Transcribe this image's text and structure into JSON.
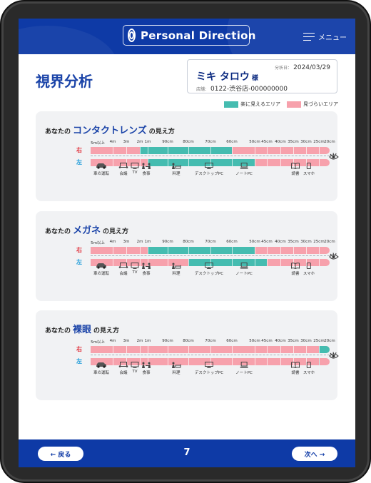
{
  "header": {
    "brand": "Personal Direction",
    "menu_label": "メニュー"
  },
  "page": {
    "title": "視界分析"
  },
  "customer": {
    "date_label": "分析日：",
    "date": "2024/03/29",
    "name": "ミキ タロウ",
    "honorific": "様",
    "store_label": "店舗：",
    "store": "0122-渋谷店-000000000"
  },
  "legend": {
    "easy_label": "楽に見えるエリア",
    "hard_label": "見づらいエリア",
    "easy_color": "#45bcb0",
    "hard_color": "#f7a1ac"
  },
  "distance_ticks": [
    "5m以上",
    "4m",
    "3m",
    "2m",
    "1m",
    "90cm",
    "80cm",
    "70cm",
    "60cm",
    "50cm",
    "45cm",
    "40cm",
    "35cm",
    "30cm",
    "25cm",
    "20cm"
  ],
  "eye_labels": {
    "right": "右",
    "left": "左"
  },
  "activities": [
    {
      "label": "車の運転",
      "icon": "car-icon"
    },
    {
      "label": "会議",
      "icon": "meeting-icon"
    },
    {
      "label": "TV",
      "icon": "tv-icon"
    },
    {
      "label": "食事",
      "icon": "dining-icon"
    },
    {
      "label": "料理",
      "icon": "cooking-icon"
    },
    {
      "label": "デスクトップPC",
      "icon": "desktop-pc-icon"
    },
    {
      "label": "ノートPC",
      "icon": "laptop-icon"
    },
    {
      "label": "読書",
      "icon": "book-icon"
    },
    {
      "label": "スマホ",
      "icon": "smartphone-icon"
    }
  ],
  "cards": [
    {
      "prefix": "あなたの",
      "lens": "コンタクトレンズ",
      "suffix": "の見え方",
      "right_clear_ticks": [
        "2m",
        "60cm"
      ],
      "left_clear_ticks": [
        "1m",
        "50cm"
      ]
    },
    {
      "prefix": "あなたの",
      "lens": "メガネ",
      "suffix": "の見え方",
      "right_clear_ticks": [
        "1m",
        "50cm"
      ],
      "left_clear_ticks": [
        "80cm",
        "45cm"
      ]
    },
    {
      "prefix": "あなたの",
      "lens": "裸眼",
      "suffix": "の見え方",
      "right_clear_ticks": [
        "25cm",
        "20cm"
      ],
      "left_clear_ticks": [
        "25cm",
        "25cm"
      ]
    }
  ],
  "footer": {
    "back_label": "← 戻る",
    "page_number": "7",
    "next_label": "次へ →"
  }
}
